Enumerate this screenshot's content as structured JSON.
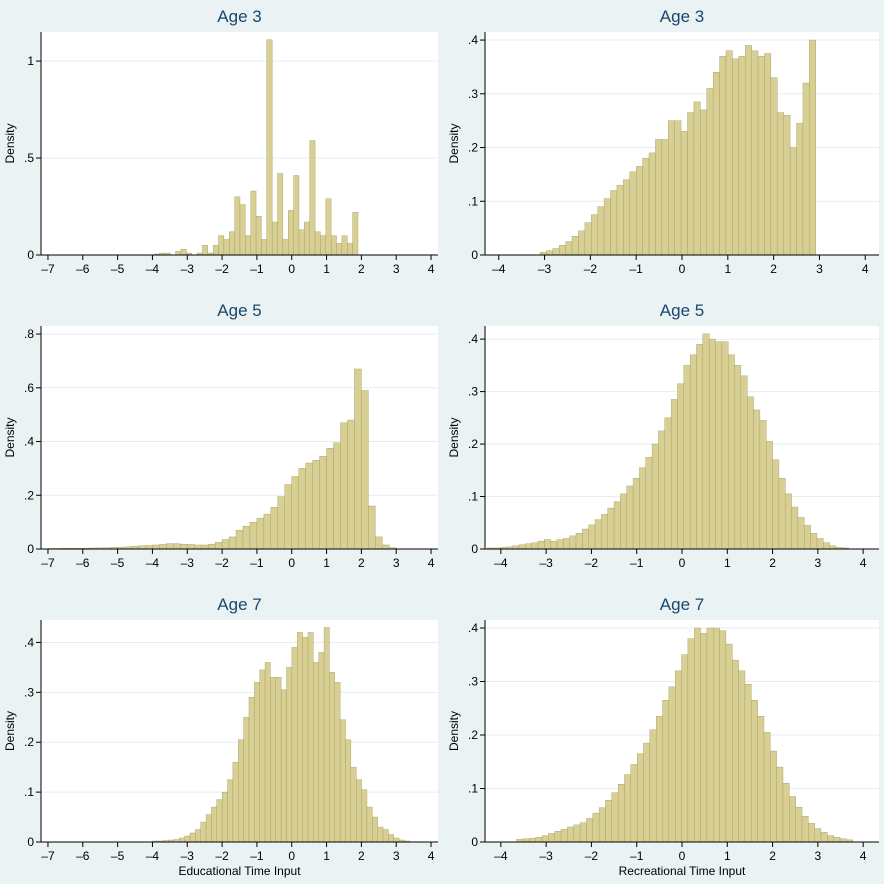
{
  "colors": {
    "background": "#eaf2f3",
    "plot_area": "#ffffff",
    "bar_fill": "#d8cf95",
    "bar_edge": "#a59b5c",
    "title": "#1a476f",
    "grid": "#e6eef0"
  },
  "chart_data": [
    {
      "type": "bar",
      "title": "Age 3",
      "xlabel": "",
      "ylabel": "Density",
      "xlim": [
        -7.2,
        4.2
      ],
      "ylim": [
        0,
        1.15
      ],
      "xticks": [
        -7,
        -6,
        -5,
        -4,
        -3,
        -2,
        -1,
        0,
        1,
        2,
        3,
        4
      ],
      "xtick_labels": [
        "–7",
        "–6",
        "–5",
        "–4",
        "–3",
        "–2",
        "–1",
        "0",
        "1",
        "2",
        "3",
        "4"
      ],
      "yticks": [
        0,
        0.5,
        1
      ],
      "ytick_labels": [
        "0",
        ".5",
        "1"
      ],
      "bin_start": -3.95,
      "bin_width": 0.154,
      "values": [
        0.005,
        0.01,
        0.01,
        0.0,
        0.02,
        0.03,
        0.01,
        0.0,
        0.01,
        0.05,
        0.01,
        0.05,
        0.1,
        0.08,
        0.12,
        0.3,
        0.26,
        0.1,
        0.33,
        0.2,
        0.08,
        1.11,
        0.17,
        0.42,
        0.08,
        0.23,
        0.41,
        0.13,
        0.17,
        0.59,
        0.12,
        0.1,
        0.29,
        0.1,
        0.06,
        0.1,
        0.06,
        0.22
      ]
    },
    {
      "type": "bar",
      "title": "Age 3",
      "xlabel": "",
      "ylabel": "Density",
      "xlim": [
        -4.3,
        4.3
      ],
      "ylim": [
        0,
        0.415
      ],
      "xticks": [
        -4,
        -3,
        -2,
        -1,
        0,
        1,
        2,
        3,
        4
      ],
      "xtick_labels": [
        "–4",
        "–3",
        "–2",
        "–1",
        "0",
        "1",
        "2",
        "3",
        "4"
      ],
      "yticks": [
        0,
        0.1,
        0.2,
        0.3,
        0.4
      ],
      "ytick_labels": [
        "0",
        ".1",
        ".2",
        ".3",
        ".4"
      ],
      "bin_start": -3.1,
      "bin_width": 0.14,
      "values": [
        0.005,
        0.008,
        0.012,
        0.018,
        0.025,
        0.035,
        0.045,
        0.06,
        0.075,
        0.09,
        0.105,
        0.12,
        0.13,
        0.14,
        0.155,
        0.165,
        0.18,
        0.19,
        0.215,
        0.215,
        0.25,
        0.25,
        0.23,
        0.265,
        0.285,
        0.27,
        0.31,
        0.34,
        0.37,
        0.38,
        0.365,
        0.37,
        0.39,
        0.38,
        0.37,
        0.375,
        0.33,
        0.265,
        0.26,
        0.2,
        0.245,
        0.32,
        0.4
      ]
    },
    {
      "type": "bar",
      "title": "Age 5",
      "xlabel": "",
      "ylabel": "Density",
      "xlim": [
        -7.2,
        4.2
      ],
      "ylim": [
        0,
        0.83
      ],
      "xticks": [
        -7,
        -6,
        -5,
        -4,
        -3,
        -2,
        -1,
        0,
        1,
        2,
        3,
        4
      ],
      "xtick_labels": [
        "–7",
        "–6",
        "–5",
        "–4",
        "–3",
        "–2",
        "–1",
        "0",
        "1",
        "2",
        "3",
        "4"
      ],
      "yticks": [
        0,
        0.2,
        0.4,
        0.6,
        0.8
      ],
      "ytick_labels": [
        "0",
        ".2",
        ".4",
        ".6",
        ".8"
      ],
      "bin_start": -7.0,
      "bin_width": 0.2,
      "values": [
        0.002,
        0.002,
        0.003,
        0.003,
        0.003,
        0.003,
        0.004,
        0.004,
        0.005,
        0.006,
        0.006,
        0.008,
        0.01,
        0.012,
        0.013,
        0.015,
        0.017,
        0.02,
        0.02,
        0.018,
        0.017,
        0.015,
        0.015,
        0.018,
        0.025,
        0.035,
        0.045,
        0.07,
        0.085,
        0.1,
        0.115,
        0.13,
        0.155,
        0.195,
        0.24,
        0.27,
        0.3,
        0.32,
        0.33,
        0.345,
        0.375,
        0.395,
        0.47,
        0.48,
        0.67,
        0.59,
        0.16,
        0.045,
        0.015,
        0.005
      ]
    },
    {
      "type": "bar",
      "title": "Age 5",
      "xlabel": "",
      "ylabel": "Density",
      "xlim": [
        -4.35,
        4.35
      ],
      "ylim": [
        0,
        0.425
      ],
      "xticks": [
        -4,
        -3,
        -2,
        -1,
        0,
        1,
        2,
        3,
        4
      ],
      "xtick_labels": [
        "–4",
        "–3",
        "–2",
        "–1",
        "0",
        "1",
        "2",
        "3",
        "4"
      ],
      "yticks": [
        0,
        0.1,
        0.2,
        0.3,
        0.4
      ],
      "ytick_labels": [
        "0",
        ".1",
        ".2",
        ".3",
        ".4"
      ],
      "bin_start": -4.3,
      "bin_width": 0.14,
      "values": [
        0.002,
        0.002,
        0.003,
        0.004,
        0.006,
        0.008,
        0.01,
        0.012,
        0.015,
        0.018,
        0.015,
        0.018,
        0.02,
        0.025,
        0.03,
        0.038,
        0.046,
        0.056,
        0.066,
        0.078,
        0.09,
        0.105,
        0.12,
        0.135,
        0.155,
        0.175,
        0.2,
        0.225,
        0.25,
        0.285,
        0.315,
        0.35,
        0.37,
        0.39,
        0.41,
        0.4,
        0.395,
        0.395,
        0.37,
        0.35,
        0.33,
        0.29,
        0.265,
        0.245,
        0.205,
        0.17,
        0.135,
        0.105,
        0.08,
        0.06,
        0.045,
        0.03,
        0.02,
        0.012,
        0.006,
        0.003,
        0.002
      ]
    },
    {
      "type": "bar",
      "title": "Age 7",
      "xlabel": "Educational Time Input",
      "ylabel": "Density",
      "xlim": [
        -7.2,
        4.2
      ],
      "ylim": [
        0,
        0.445
      ],
      "xticks": [
        -7,
        -6,
        -5,
        -4,
        -3,
        -2,
        -1,
        0,
        1,
        2,
        3,
        4
      ],
      "xtick_labels": [
        "–7",
        "–6",
        "–5",
        "–4",
        "–3",
        "–2",
        "–1",
        "0",
        "1",
        "2",
        "3",
        "4"
      ],
      "yticks": [
        0,
        0.1,
        0.2,
        0.3,
        0.4
      ],
      "ytick_labels": [
        "0",
        ".1",
        ".2",
        ".3",
        ".4"
      ],
      "bin_start": -4.0,
      "bin_width": 0.154,
      "values": [
        0.002,
        0.002,
        0.003,
        0.004,
        0.005,
        0.008,
        0.012,
        0.018,
        0.025,
        0.04,
        0.055,
        0.07,
        0.085,
        0.1,
        0.125,
        0.16,
        0.205,
        0.25,
        0.29,
        0.32,
        0.345,
        0.36,
        0.33,
        0.33,
        0.305,
        0.35,
        0.39,
        0.42,
        0.41,
        0.42,
        0.36,
        0.38,
        0.43,
        0.34,
        0.32,
        0.245,
        0.205,
        0.15,
        0.125,
        0.105,
        0.07,
        0.05,
        0.03,
        0.025,
        0.015,
        0.008,
        0.004,
        0.002
      ]
    },
    {
      "type": "bar",
      "title": "Age 7",
      "xlabel": "Recreational Time Input",
      "ylabel": "Density",
      "xlim": [
        -4.35,
        4.35
      ],
      "ylim": [
        0,
        0.415
      ],
      "xticks": [
        -4,
        -3,
        -2,
        -1,
        0,
        1,
        2,
        3,
        4
      ],
      "xtick_labels": [
        "–4",
        "–3",
        "–2",
        "–1",
        "0",
        "1",
        "2",
        "3",
        "4"
      ],
      "yticks": [
        0,
        0.1,
        0.2,
        0.3,
        0.4
      ],
      "ytick_labels": [
        "0",
        ".1",
        ".2",
        ".3",
        ".4"
      ],
      "bin_start": -3.65,
      "bin_width": 0.14,
      "values": [
        0.005,
        0.006,
        0.007,
        0.009,
        0.012,
        0.016,
        0.02,
        0.024,
        0.028,
        0.032,
        0.036,
        0.044,
        0.054,
        0.064,
        0.078,
        0.092,
        0.108,
        0.126,
        0.145,
        0.165,
        0.185,
        0.21,
        0.235,
        0.265,
        0.29,
        0.32,
        0.35,
        0.38,
        0.4,
        0.39,
        0.4,
        0.4,
        0.395,
        0.37,
        0.34,
        0.32,
        0.295,
        0.265,
        0.235,
        0.205,
        0.17,
        0.14,
        0.11,
        0.085,
        0.065,
        0.048,
        0.035,
        0.025,
        0.018,
        0.012,
        0.009,
        0.006,
        0.004
      ]
    }
  ]
}
